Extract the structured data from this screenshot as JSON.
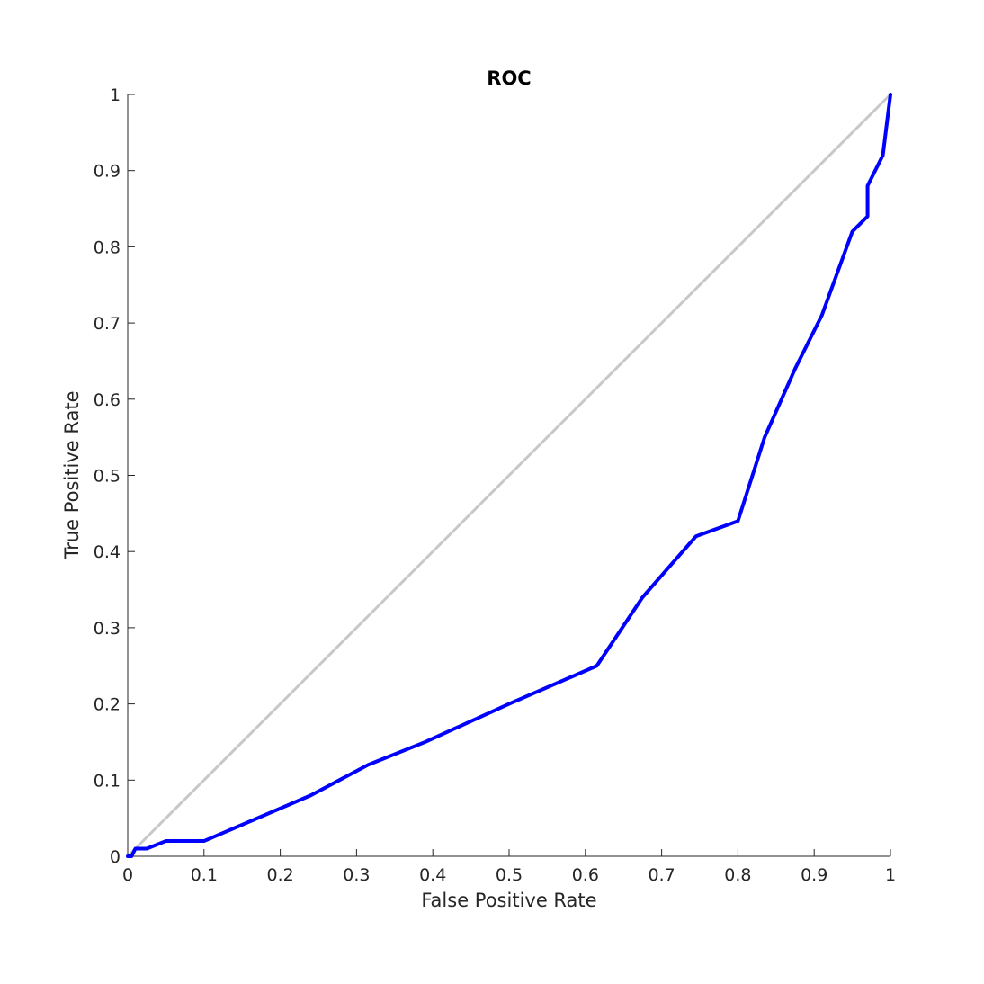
{
  "chart_data": {
    "type": "line",
    "title": "ROC",
    "xlabel": "False Positive Rate",
    "ylabel": "True Positive Rate",
    "xlim": [
      0,
      1
    ],
    "ylim": [
      0,
      1
    ],
    "grid": false,
    "legend": "none",
    "x_ticks": [
      "0",
      "0.1",
      "0.2",
      "0.3",
      "0.4",
      "0.5",
      "0.6",
      "0.7",
      "0.8",
      "0.9",
      "1"
    ],
    "y_ticks": [
      "0",
      "0.1",
      "0.2",
      "0.3",
      "0.4",
      "0.5",
      "0.6",
      "0.7",
      "0.8",
      "0.9",
      "1"
    ],
    "reference_line": {
      "x": [
        0,
        1
      ],
      "y": [
        0,
        1
      ],
      "color": "#c8c8c8"
    },
    "series": [
      {
        "color": "#0000ff",
        "x": [
          0,
          0.005,
          0.01,
          0.025,
          0.05,
          0.1,
          0.24,
          0.315,
          0.39,
          0.5,
          0.615,
          0.675,
          0.745,
          0.8,
          0.835,
          0.875,
          0.91,
          0.95,
          0.97,
          0.97,
          0.99,
          1.0
        ],
        "y": [
          0,
          0,
          0.01,
          0.01,
          0.02,
          0.02,
          0.08,
          0.12,
          0.15,
          0.2,
          0.25,
          0.34,
          0.42,
          0.44,
          0.55,
          0.64,
          0.71,
          0.82,
          0.84,
          0.88,
          0.92,
          1.0
        ]
      }
    ]
  }
}
